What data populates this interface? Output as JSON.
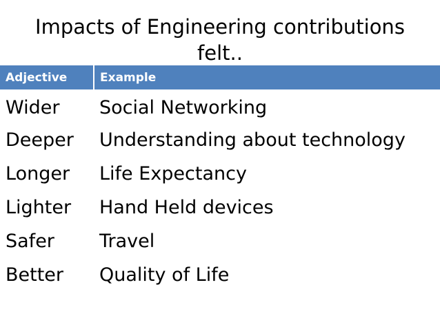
{
  "slide": {
    "title": "Impacts of Engineering contributions felt..",
    "table": {
      "headers": [
        "Adjective",
        "Example"
      ],
      "rows": [
        [
          "Wider",
          "Social Networking"
        ],
        [
          "Deeper",
          "Understanding about technology"
        ],
        [
          "Longer",
          "Life Expectancy"
        ],
        [
          "Lighter",
          "Hand Held devices"
        ],
        [
          "Safer",
          "Travel"
        ],
        [
          "Better",
          "Quality of Life"
        ]
      ]
    }
  },
  "colors": {
    "header_background": "#4f81bd",
    "header_text": "#ffffff",
    "body_text": "#000000",
    "slide_background": "#ffffff"
  }
}
